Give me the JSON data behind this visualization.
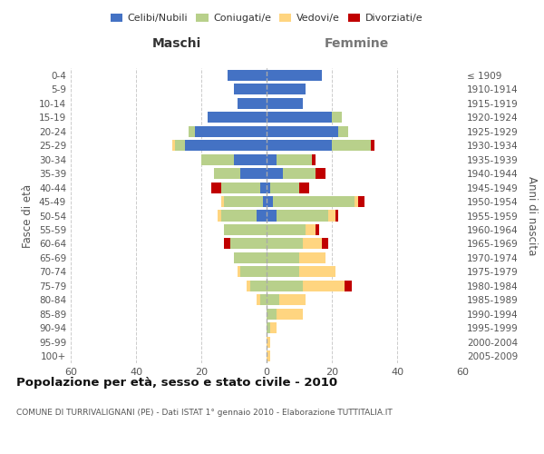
{
  "age_groups": [
    "0-4",
    "5-9",
    "10-14",
    "15-19",
    "20-24",
    "25-29",
    "30-34",
    "35-39",
    "40-44",
    "45-49",
    "50-54",
    "55-59",
    "60-64",
    "65-69",
    "70-74",
    "75-79",
    "80-84",
    "85-89",
    "90-94",
    "95-99",
    "100+"
  ],
  "birth_years": [
    "2005-2009",
    "2000-2004",
    "1995-1999",
    "1990-1994",
    "1985-1989",
    "1980-1984",
    "1975-1979",
    "1970-1974",
    "1965-1969",
    "1960-1964",
    "1955-1959",
    "1950-1954",
    "1945-1949",
    "1940-1944",
    "1935-1939",
    "1930-1934",
    "1925-1929",
    "1920-1924",
    "1915-1919",
    "1910-1914",
    "≤ 1909"
  ],
  "male": {
    "celibi": [
      12,
      10,
      9,
      18,
      22,
      25,
      10,
      8,
      2,
      1,
      3,
      0,
      0,
      0,
      0,
      0,
      0,
      0,
      0,
      0,
      0
    ],
    "coniugati": [
      0,
      0,
      0,
      0,
      2,
      3,
      10,
      8,
      12,
      12,
      11,
      13,
      11,
      10,
      8,
      5,
      2,
      0,
      0,
      0,
      0
    ],
    "vedovi": [
      0,
      0,
      0,
      0,
      0,
      1,
      0,
      0,
      0,
      1,
      1,
      0,
      0,
      0,
      1,
      1,
      1,
      0,
      0,
      0,
      0
    ],
    "divorziati": [
      0,
      0,
      0,
      0,
      0,
      0,
      0,
      0,
      3,
      0,
      0,
      0,
      2,
      0,
      0,
      0,
      0,
      0,
      0,
      0,
      0
    ]
  },
  "female": {
    "nubili": [
      17,
      12,
      11,
      20,
      22,
      20,
      3,
      5,
      1,
      2,
      3,
      0,
      0,
      0,
      0,
      0,
      0,
      0,
      0,
      0,
      0
    ],
    "coniugate": [
      0,
      0,
      0,
      3,
      3,
      12,
      11,
      10,
      9,
      25,
      16,
      12,
      11,
      10,
      10,
      11,
      4,
      3,
      1,
      0,
      0
    ],
    "vedove": [
      0,
      0,
      0,
      0,
      0,
      0,
      0,
      0,
      0,
      1,
      2,
      3,
      6,
      8,
      11,
      13,
      8,
      8,
      2,
      1,
      1
    ],
    "divorziate": [
      0,
      0,
      0,
      0,
      0,
      1,
      1,
      3,
      3,
      2,
      1,
      1,
      2,
      0,
      0,
      2,
      0,
      0,
      0,
      0,
      0
    ]
  },
  "colors": {
    "celibi_nubili": "#4472C4",
    "coniugati": "#B8D08B",
    "vedovi": "#FFD580",
    "divorziati": "#C00000"
  },
  "title": "Popolazione per età, sesso e stato civile - 2010",
  "subtitle": "COMUNE DI TURRIVALIGNANI (PE) - Dati ISTAT 1° gennaio 2010 - Elaborazione TUTTITALIA.IT",
  "xlabel_left": "Maschi",
  "xlabel_right": "Femmine",
  "ylabel_left": "Fasce di età",
  "ylabel_right": "Anni di nascita",
  "xlim": 60,
  "background_color": "#ffffff",
  "grid_color": "#cccccc"
}
